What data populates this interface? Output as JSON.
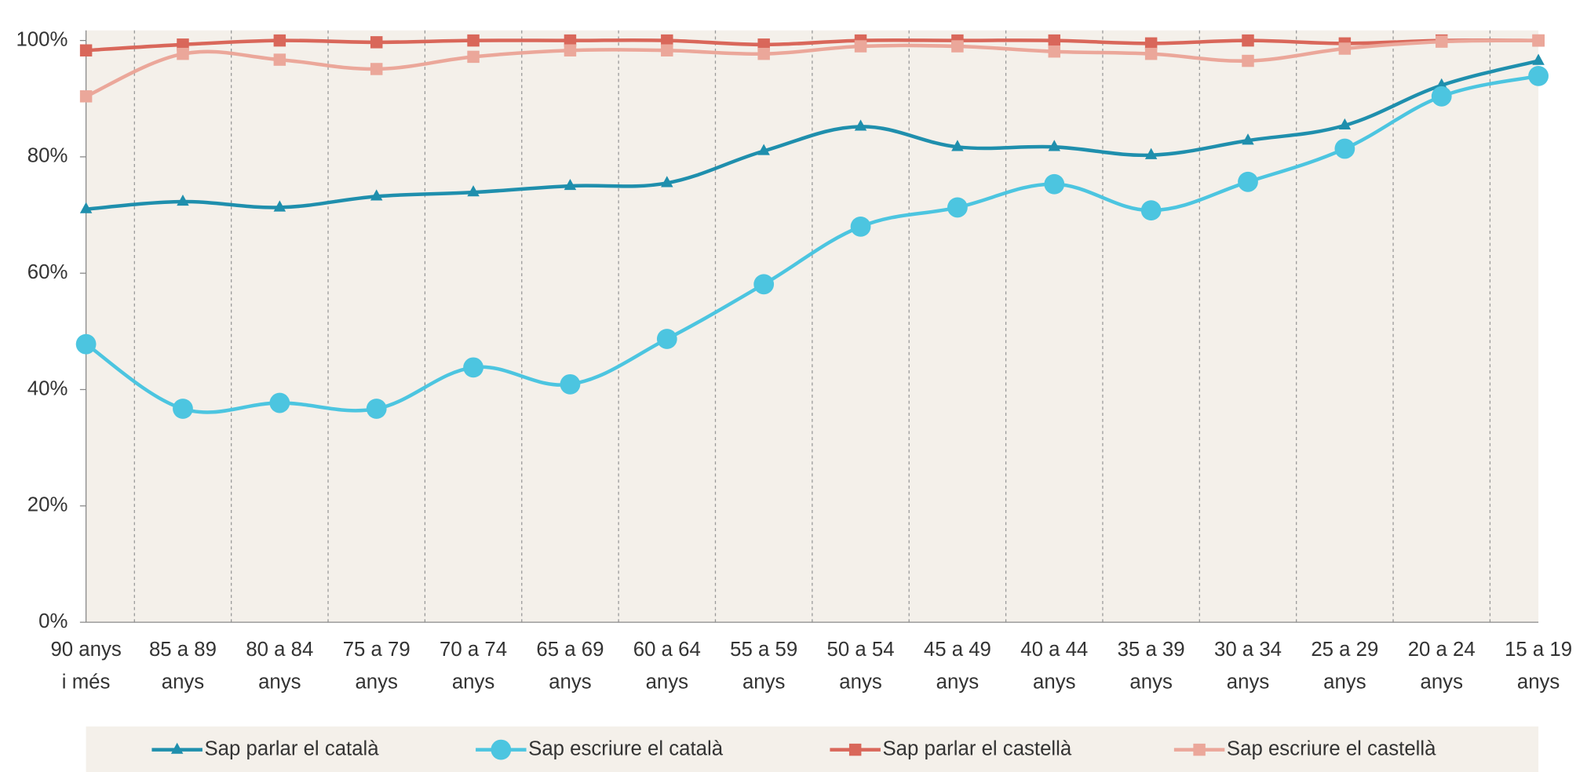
{
  "chart_data": {
    "type": "line",
    "categories": [
      [
        "90 anys",
        "i més"
      ],
      [
        "85 a 89",
        "anys"
      ],
      [
        "80 a 84",
        "anys"
      ],
      [
        "75 a 79",
        "anys"
      ],
      [
        "70 a 74",
        "anys"
      ],
      [
        "65 a 69",
        "anys"
      ],
      [
        "60 a 64",
        "anys"
      ],
      [
        "55 a 59",
        "anys"
      ],
      [
        "50 a 54",
        "anys"
      ],
      [
        "45 a 49",
        "anys"
      ],
      [
        "40 a 44",
        "anys"
      ],
      [
        "35 a 39",
        "anys"
      ],
      [
        "30 a 34",
        "anys"
      ],
      [
        "25 a 29",
        "anys"
      ],
      [
        "20 a 24",
        "anys"
      ],
      [
        "15 a 19",
        "anys"
      ]
    ],
    "series": [
      {
        "name": "Sap parlar el català",
        "color": "#1f8fad",
        "marker": "triangle",
        "values": [
          71,
          72.3,
          71.3,
          73.2,
          73.9,
          75,
          75.5,
          81,
          85.2,
          81.7,
          81.7,
          80.3,
          82.8,
          85.4,
          92.3,
          96.5
        ]
      },
      {
        "name": "Sap escriure el català",
        "color": "#4cc5e0",
        "marker": "circle",
        "values": [
          47.8,
          36.7,
          37.7,
          36.7,
          43.8,
          40.9,
          48.7,
          58.1,
          68,
          71.3,
          75.3,
          70.8,
          75.7,
          81.4,
          90.4,
          93.9
        ]
      },
      {
        "name": "Sap parlar el castellà",
        "color": "#d9675a",
        "marker": "square",
        "values": [
          98.3,
          99.3,
          100,
          99.7,
          100,
          100,
          100,
          99.3,
          100,
          100,
          100,
          99.5,
          100,
          99.5,
          100,
          100
        ]
      },
      {
        "name": "Sap escriure el castellà",
        "color": "#eba79a",
        "marker": "square",
        "values": [
          90.4,
          97.7,
          96.7,
          95.1,
          97.2,
          98.3,
          98.3,
          97.7,
          99,
          99,
          98.1,
          97.7,
          96.5,
          98.6,
          99.8,
          100
        ]
      }
    ],
    "ylim": [
      0,
      100
    ],
    "yticks": [
      {
        "value": 0,
        "label": "0%"
      },
      {
        "value": 20,
        "label": "20%"
      },
      {
        "value": 40,
        "label": "40%"
      },
      {
        "value": 60,
        "label": "60%"
      },
      {
        "value": 80,
        "label": "80%"
      },
      {
        "value": 100,
        "label": "100%"
      }
    ],
    "grid": true,
    "legend": "bottom"
  }
}
